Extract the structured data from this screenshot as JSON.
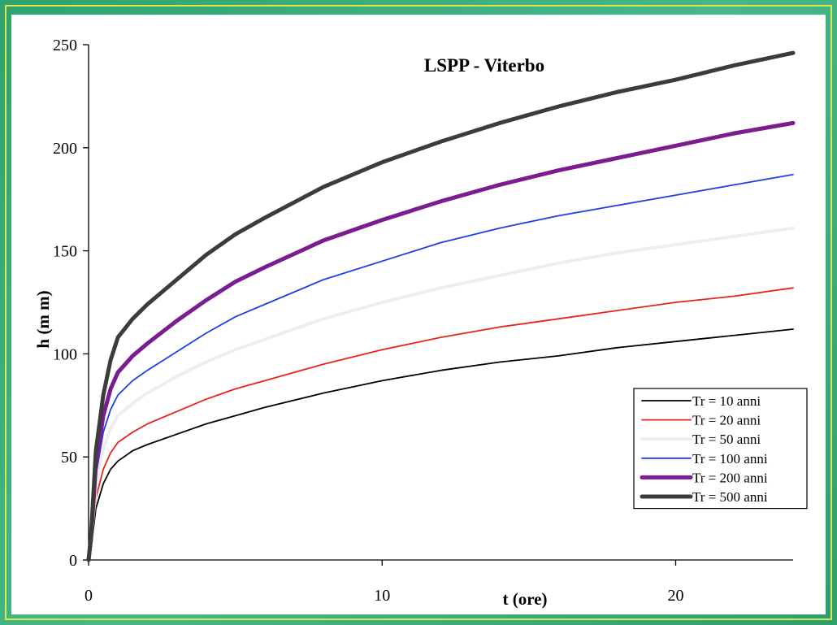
{
  "chart_data": {
    "type": "line",
    "title": "LSPP - Viterbo",
    "xlabel": "t (ore)",
    "ylabel": "h (m m)",
    "xlim": [
      0,
      24
    ],
    "ylim": [
      0,
      250
    ],
    "xticks": [
      0,
      10,
      20
    ],
    "yticks": [
      0,
      50,
      100,
      150,
      200,
      250
    ],
    "grid": false,
    "legend_position": "bottom-right",
    "series": [
      {
        "name": "Tr = 10 anni",
        "color": "#000000",
        "style": "thin",
        "x": [
          0.08,
          0.25,
          0.5,
          0.75,
          1,
          1.5,
          2,
          3,
          4,
          5,
          6,
          8,
          10,
          12,
          14,
          16,
          18,
          20,
          22,
          24
        ],
        "y": [
          5,
          25,
          37,
          44,
          48,
          53,
          56,
          61,
          66,
          70,
          74,
          81,
          87,
          92,
          96,
          99,
          103,
          106,
          109,
          112
        ]
      },
      {
        "name": "Tr = 20 anni",
        "color": "#e8231e",
        "style": "thin",
        "x": [
          0.08,
          0.25,
          0.5,
          0.75,
          1,
          1.5,
          2,
          3,
          4,
          5,
          6,
          8,
          10,
          12,
          14,
          16,
          18,
          20,
          22,
          24
        ],
        "y": [
          6,
          30,
          44,
          52,
          57,
          62,
          66,
          72,
          78,
          83,
          87,
          95,
          102,
          108,
          113,
          117,
          121,
          125,
          128,
          132
        ]
      },
      {
        "name": "Tr = 50 anni",
        "color": "#eeeeee",
        "style": "thick",
        "x": [
          0.08,
          0.25,
          0.5,
          0.75,
          1,
          1.5,
          2,
          3,
          4,
          5,
          6,
          8,
          10,
          12,
          14,
          16,
          18,
          20,
          22,
          24
        ],
        "y": [
          8,
          36,
          54,
          64,
          70,
          76,
          81,
          89,
          96,
          102,
          107,
          117,
          125,
          132,
          138,
          144,
          149,
          153,
          157,
          161
        ]
      },
      {
        "name": "Tr = 100 anni",
        "color": "#1f3fe0",
        "style": "thin",
        "x": [
          0.08,
          0.25,
          0.5,
          0.75,
          1,
          1.5,
          2,
          3,
          4,
          5,
          6,
          8,
          10,
          12,
          14,
          16,
          18,
          20,
          22,
          24
        ],
        "y": [
          9,
          41,
          62,
          73,
          80,
          87,
          92,
          101,
          110,
          118,
          124,
          136,
          145,
          154,
          161,
          167,
          172,
          177,
          182,
          187
        ]
      },
      {
        "name": "Tr = 200 anni",
        "color": "#7b1c91",
        "style": "thick",
        "x": [
          0.08,
          0.25,
          0.5,
          0.75,
          1,
          1.5,
          2,
          3,
          4,
          5,
          6,
          8,
          10,
          12,
          14,
          16,
          18,
          20,
          22,
          24
        ],
        "y": [
          10,
          46,
          70,
          83,
          91,
          99,
          105,
          116,
          126,
          135,
          142,
          155,
          165,
          174,
          182,
          189,
          195,
          201,
          207,
          212
        ]
      },
      {
        "name": "Tr = 500 anni",
        "color": "#3c3c3c",
        "style": "thick",
        "x": [
          0.08,
          0.25,
          0.5,
          0.75,
          1,
          1.5,
          2,
          3,
          4,
          5,
          6,
          8,
          10,
          12,
          14,
          16,
          18,
          20,
          22,
          24
        ],
        "y": [
          11,
          53,
          80,
          97,
          108,
          117,
          124,
          136,
          148,
          158,
          166,
          181,
          193,
          203,
          212,
          220,
          227,
          233,
          240,
          246
        ]
      }
    ]
  }
}
